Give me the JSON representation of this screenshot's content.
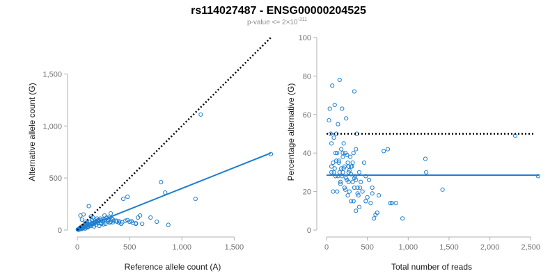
{
  "title": "rs114027487 - ENSG00000204525",
  "subtitle": {
    "prefix": "p-value <= 2×10",
    "exponent": "-311"
  },
  "colors": {
    "points": "#1f7fd1",
    "fit_line": "#1f7fd1",
    "reference_line": "#000000"
  },
  "chart_data": [
    {
      "type": "scatter",
      "xlabel": "Reference allele count (A)",
      "ylabel": "Alternative allele count (G)",
      "xlim": [
        0,
        1870
      ],
      "ylim": [
        0,
        1850
      ],
      "xticks": [
        0,
        500,
        1000,
        1500
      ],
      "xtick_labels": [
        "0",
        "500",
        "1,000",
        "1,500"
      ],
      "yticks": [
        0,
        500,
        1000,
        1500
      ],
      "ytick_labels": [
        "0",
        "500",
        "1,000",
        "1,500"
      ],
      "grid": false,
      "reference_line": {
        "style": "dotted",
        "x": [
          0,
          1850
        ],
        "y": [
          0,
          1850
        ]
      },
      "fit_line": {
        "style": "solid",
        "x": [
          0,
          1850
        ],
        "y": [
          0,
          740
        ]
      },
      "points": {
        "x": [
          5,
          10,
          15,
          20,
          25,
          30,
          35,
          40,
          45,
          50,
          55,
          60,
          65,
          70,
          75,
          80,
          85,
          90,
          95,
          100,
          110,
          120,
          130,
          140,
          150,
          160,
          170,
          180,
          190,
          200,
          210,
          220,
          230,
          240,
          250,
          260,
          270,
          280,
          290,
          300,
          310,
          320,
          330,
          340,
          350,
          380,
          400,
          420,
          440,
          460,
          480,
          500,
          530,
          560,
          580,
          600,
          620,
          700,
          760,
          800,
          840,
          870,
          1130,
          1180,
          1850,
          30,
          45,
          60,
          75,
          90,
          110,
          130,
          150,
          170,
          190,
          210,
          230,
          260,
          290,
          320,
          50,
          70,
          100,
          120,
          140,
          160,
          180,
          200,
          35,
          55,
          85,
          105,
          125,
          145,
          165,
          185,
          205,
          225,
          250,
          280,
          310,
          340,
          370,
          400,
          430,
          12,
          22,
          40,
          480,
          520,
          560
        ],
        "y": [
          5,
          8,
          10,
          15,
          20,
          25,
          18,
          30,
          12,
          40,
          22,
          35,
          28,
          50,
          15,
          60,
          45,
          30,
          70,
          25,
          55,
          80,
          40,
          95,
          60,
          35,
          75,
          50,
          90,
          65,
          40,
          110,
          70,
          85,
          55,
          100,
          60,
          120,
          80,
          95,
          70,
          160,
          110,
          75,
          90,
          80,
          70,
          60,
          300,
          90,
          320,
          80,
          70,
          60,
          120,
          140,
          60,
          120,
          80,
          460,
          360,
          50,
          300,
          1110,
          730,
          140,
          100,
          150,
          80,
          60,
          230,
          130,
          120,
          70,
          110,
          90,
          60,
          140,
          100,
          80,
          20,
          35,
          45,
          55,
          65,
          75,
          85,
          95,
          12,
          18,
          25,
          35,
          45,
          55,
          65,
          75,
          85,
          95,
          105,
          115,
          125,
          100,
          90,
          85,
          75,
          3,
          6,
          10,
          95,
          85,
          65
        ]
      }
    },
    {
      "type": "scatter",
      "xlabel": "Total number of reads",
      "ylabel": "Percentage alternative (G)",
      "xlim": [
        0,
        2600
      ],
      "ylim": [
        0,
        100
      ],
      "xticks": [
        0,
        500,
        1000,
        1500,
        2000,
        2500
      ],
      "xtick_labels": [
        "0",
        "500",
        "1,000",
        "1,500",
        "2,000",
        "2,500"
      ],
      "yticks": [
        0,
        20,
        40,
        60,
        80,
        100
      ],
      "ytick_labels": [
        "0",
        "20",
        "40",
        "60",
        "80",
        "100"
      ],
      "grid": false,
      "reference_line": {
        "style": "dotted",
        "x": [
          0,
          2550
        ],
        "y": [
          50,
          50
        ]
      },
      "fit_line": {
        "style": "solid",
        "x": [
          0,
          2600
        ],
        "y": [
          28.5,
          28.5
        ]
      },
      "points": {
        "x": [
          30,
          40,
          50,
          60,
          70,
          80,
          90,
          100,
          110,
          120,
          130,
          140,
          150,
          160,
          170,
          180,
          190,
          200,
          210,
          220,
          230,
          240,
          250,
          260,
          270,
          280,
          290,
          300,
          310,
          320,
          330,
          340,
          350,
          360,
          370,
          380,
          390,
          400,
          420,
          440,
          460,
          480,
          500,
          520,
          540,
          560,
          580,
          600,
          620,
          640,
          700,
          750,
          780,
          800,
          850,
          930,
          1210,
          1220,
          1420,
          2310,
          2590,
          60,
          80,
          100,
          120,
          140,
          160,
          180,
          200,
          220,
          240,
          260,
          280,
          300,
          320,
          340,
          360,
          380,
          400,
          90,
          110,
          150,
          170,
          190,
          210,
          230,
          250,
          270,
          300,
          330,
          360,
          60,
          130,
          200,
          270,
          340,
          410,
          480,
          560
        ],
        "y": [
          57,
          63,
          50,
          45,
          75,
          35,
          30,
          65,
          28,
          50,
          40,
          55,
          35,
          78,
          25,
          32,
          63,
          30,
          45,
          22,
          40,
          58,
          26,
          35,
          30,
          20,
          38,
          15,
          33,
          25,
          40,
          72,
          28,
          42,
          50,
          22,
          18,
          30,
          25,
          20,
          35,
          28,
          17,
          26,
          14,
          22,
          6,
          8,
          9,
          18,
          41,
          42,
          14,
          14,
          14,
          6,
          37,
          30,
          21,
          49,
          28,
          30,
          20,
          32,
          36,
          28,
          30,
          42,
          38,
          33,
          27,
          18,
          31,
          29,
          35,
          22,
          26,
          19,
          12,
          48,
          40,
          36,
          24,
          28,
          32,
          21,
          39,
          25,
          33,
          15,
          10,
          33,
          20,
          40,
          33,
          27,
          22,
          15,
          19
        ]
      }
    }
  ]
}
